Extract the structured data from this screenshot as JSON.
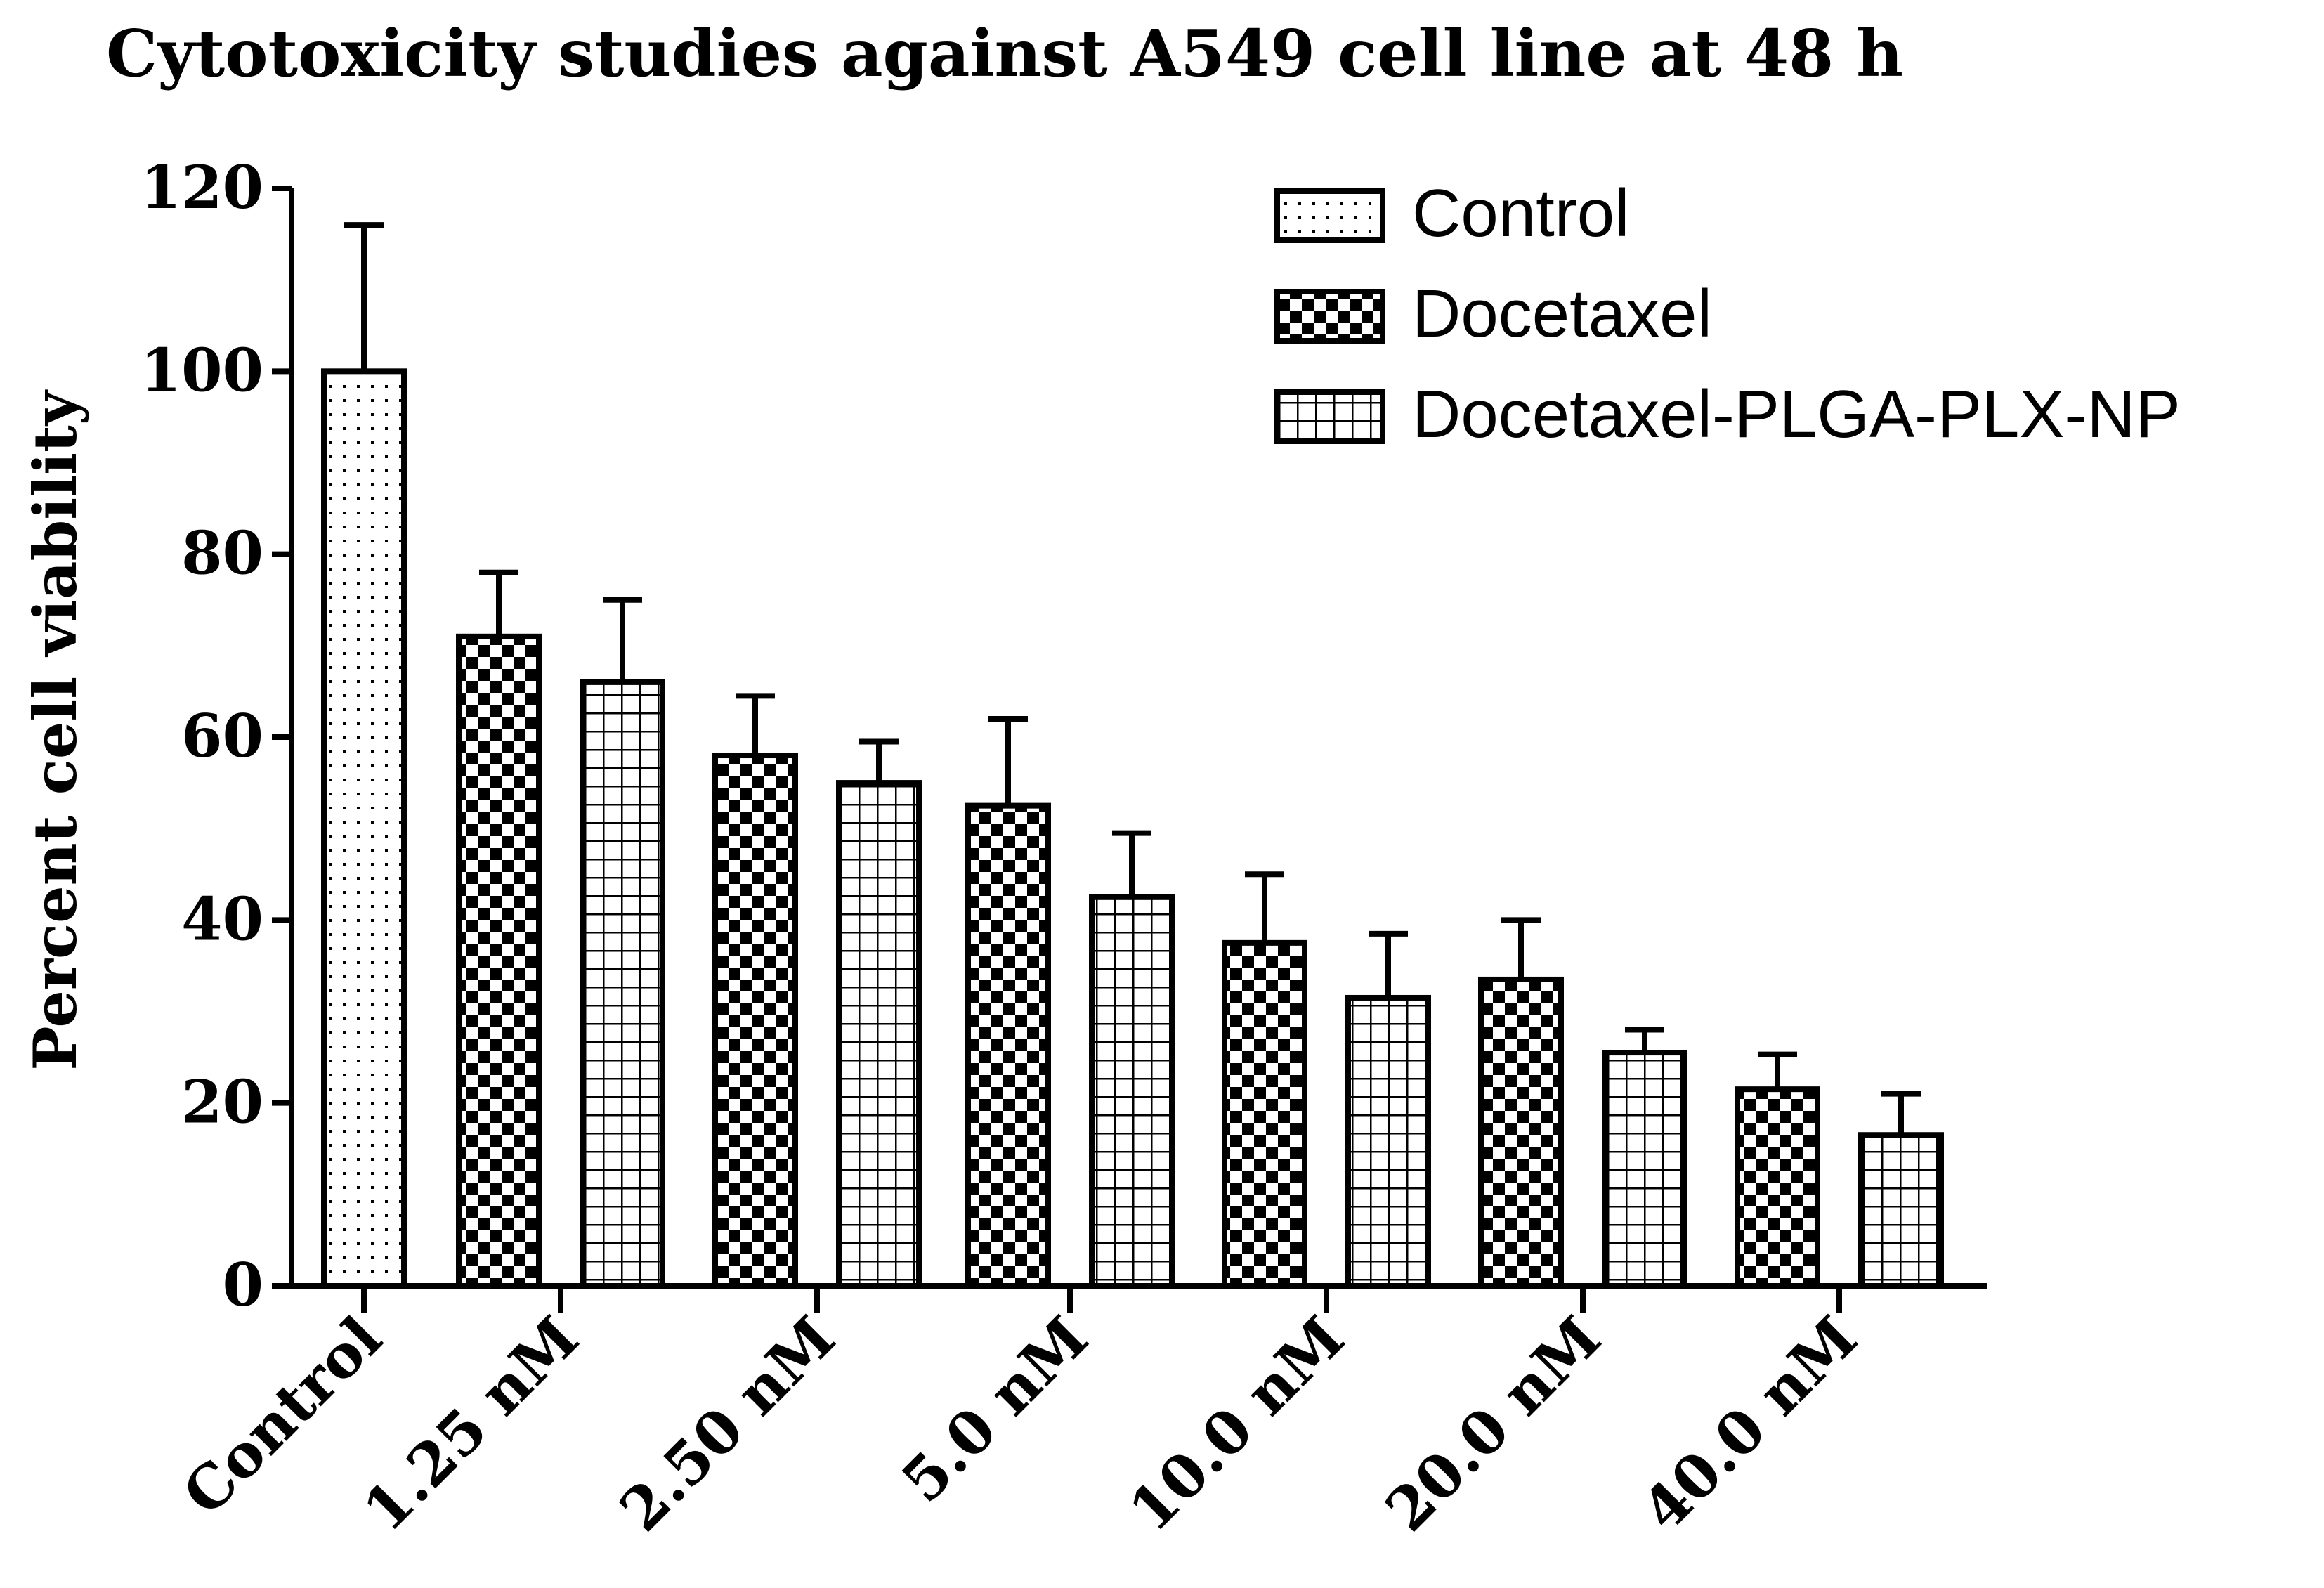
{
  "chart_data": {
    "type": "bar",
    "title": "Cytotoxicity studies against A549  cell line at 48 h",
    "xlabel": "",
    "ylabel": "Percent cell viability",
    "ylim": [
      0,
      120
    ],
    "yticks": [
      0,
      20,
      40,
      60,
      80,
      100,
      120
    ],
    "categories": [
      "Control",
      "1.25 nM",
      "2.50 nM",
      "5.0 nM",
      "10.0 nM",
      "20.0 nM",
      "40.0 nM"
    ],
    "series": [
      {
        "name": "Control",
        "pattern": "dots",
        "values": [
          100,
          null,
          null,
          null,
          null,
          null,
          null
        ],
        "errors": [
          16,
          null,
          null,
          null,
          null,
          null,
          null
        ]
      },
      {
        "name": "Docetaxel",
        "pattern": "checker",
        "values": [
          null,
          71,
          58,
          52.5,
          37.5,
          33.5,
          21.5
        ],
        "errors": [
          null,
          7,
          6.5,
          9.5,
          7.5,
          6.5,
          3.8
        ]
      },
      {
        "name": "Docetaxel-PLGA-PLX-NP",
        "pattern": "grid",
        "values": [
          null,
          66,
          55,
          42.5,
          31.5,
          25.5,
          16.5
        ],
        "errors": [
          null,
          9,
          4.5,
          7,
          7,
          2.5,
          4.5
        ]
      }
    ],
    "legend_position": "top-right"
  },
  "colors": {
    "axis": "#000000",
    "bar_fill": "#ffffff",
    "pattern": "#000000"
  }
}
